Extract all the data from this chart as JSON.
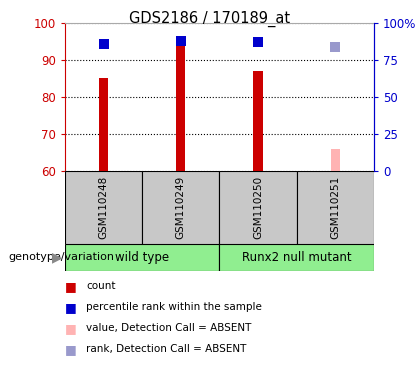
{
  "title": "GDS2186 / 170189_at",
  "samples": [
    "GSM110248",
    "GSM110249",
    "GSM110250",
    "GSM110251"
  ],
  "bar_values": [
    85.0,
    96.0,
    87.0,
    66.0
  ],
  "bar_colors": [
    "#cc0000",
    "#cc0000",
    "#cc0000",
    "#ffb3b3"
  ],
  "rank_values": [
    86.0,
    88.0,
    87.5,
    84.0
  ],
  "rank_colors": [
    "#0000cc",
    "#0000cc",
    "#0000cc",
    "#9999cc"
  ],
  "absent_flags": [
    false,
    false,
    false,
    true
  ],
  "ylim_left": [
    60,
    100
  ],
  "ylim_right": [
    0,
    100
  ],
  "yticks_left": [
    60,
    70,
    80,
    90,
    100
  ],
  "yticks_right": [
    0,
    25,
    50,
    75,
    100
  ],
  "left_axis_color": "#cc0000",
  "right_axis_color": "#0000cc",
  "bar_width": 0.12,
  "rank_marker_size": 55,
  "bg_color": "#ffffff",
  "label_geno": "genotype/variation",
  "green_color": "#90ee90",
  "gray_color": "#c8c8c8",
  "legend_items": [
    {
      "color": "#cc0000",
      "label": "count"
    },
    {
      "color": "#0000cc",
      "label": "percentile rank within the sample"
    },
    {
      "color": "#ffb3b3",
      "label": "value, Detection Call = ABSENT"
    },
    {
      "color": "#9999cc",
      "label": "rank, Detection Call = ABSENT"
    }
  ]
}
